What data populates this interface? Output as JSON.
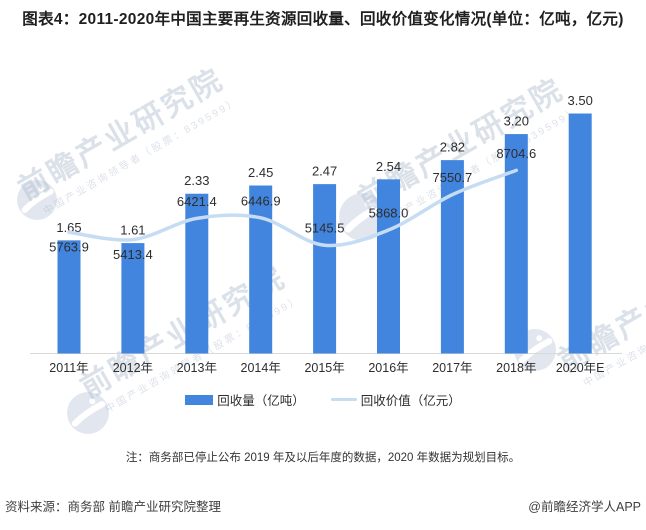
{
  "title": "图表4：2011-2020年中国主要再生资源回收量、回收价值变化情况(单位：亿吨，亿元)",
  "chart_data": {
    "type": "bar",
    "categories": [
      "2011年",
      "2012年",
      "2013年",
      "2014年",
      "2015年",
      "2016年",
      "2017年",
      "2018年",
      "2020年E"
    ],
    "series": [
      {
        "name": "回收量（亿吨）",
        "type": "bar",
        "color": "#4285DE",
        "values": [
          1.65,
          1.61,
          2.33,
          2.45,
          2.47,
          2.54,
          2.82,
          3.2,
          3.5
        ],
        "labels": [
          "1.65",
          "1.61",
          "2.33",
          "2.45",
          "2.47",
          "2.54",
          "2.82",
          "3.20",
          "3.50"
        ]
      },
      {
        "name": "回收价值（亿元）",
        "type": "line",
        "color": "#C5DCF3",
        "values": [
          5763.9,
          5413.4,
          6421.4,
          6446.9,
          5145.5,
          5868.0,
          7550.7,
          8704.6
        ],
        "labels": [
          "5763.9",
          "5413.4",
          "6421.4",
          "6446.9",
          "5145.5",
          "5868.0",
          "7550.7",
          "8704.6"
        ],
        "label_positions": [
          "below",
          "below",
          "above",
          "above",
          "above",
          "above",
          "above",
          "above"
        ]
      }
    ],
    "bar_ylim": [
      0,
      3.5
    ],
    "line_ylim": [
      0,
      16800
    ],
    "grid": false,
    "legend_position": "bottom",
    "axis_color": "#D9D9D9"
  },
  "note": "注：商务部已停止公布 2019 年及以后年度的数据，2020 年数据为规划目标。",
  "footer": {
    "source": "资料来源：商务部 前瞻产业研究院整理",
    "credit": "@前瞻经济学人APP"
  },
  "watermark": {
    "brand": "前瞻产业研究院",
    "tagline": "中国产业咨询领导者（股票：839599）",
    "logo": "qianzhan-logo"
  },
  "colors": {
    "bar": "#4285DE",
    "line": "#C5DCF3",
    "title_text": "#1F1F1F",
    "label_text": "#2E2E2E",
    "axis": "#D9D9D9",
    "watermark": "#B6C1D3"
  }
}
